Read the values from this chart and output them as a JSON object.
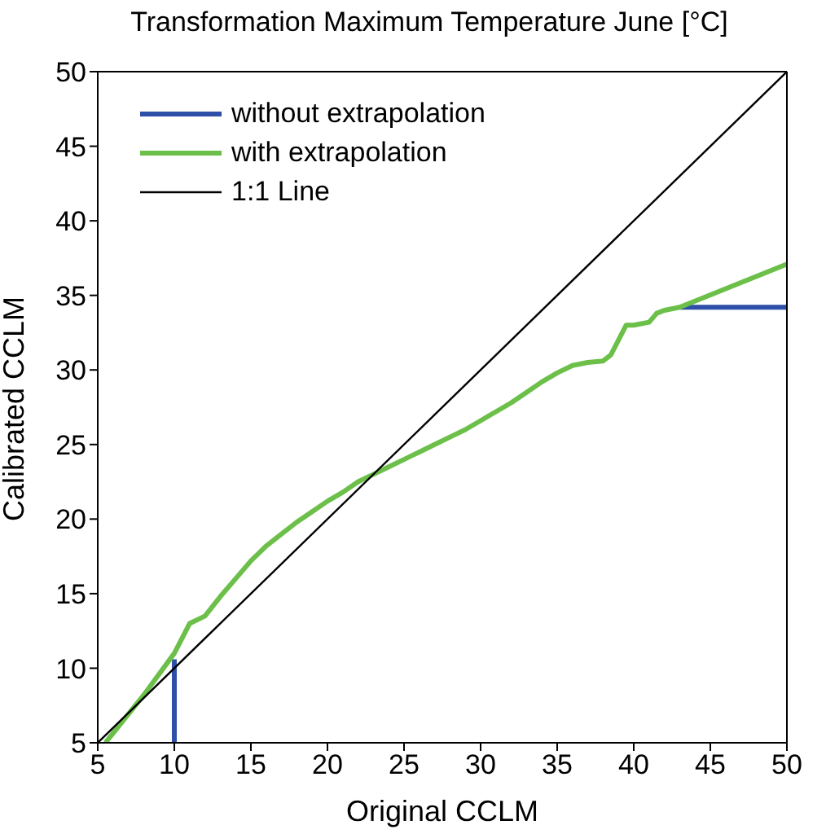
{
  "chart_data": {
    "type": "line",
    "title": "Transformation Maximum Temperature June [°C]",
    "xlabel": "Original CCLM",
    "ylabel": "Calibrated CCLM",
    "xlim": [
      5,
      50
    ],
    "ylim": [
      5,
      50
    ],
    "xticks": [
      5,
      10,
      15,
      20,
      25,
      30,
      35,
      40,
      45,
      50
    ],
    "yticks": [
      5,
      10,
      15,
      20,
      25,
      30,
      35,
      40,
      45,
      50
    ],
    "grid": false,
    "legend": "top left",
    "marker": "none",
    "series": [
      {
        "name": "without extrapolation",
        "color": "#2e4fa8",
        "x": [
          10,
          10,
          20,
          43,
          50
        ],
        "values": [
          5,
          10.6,
          null,
          34.2,
          34.2
        ]
      },
      {
        "name": "with extrapolation",
        "color": "#6cc04a",
        "x": [
          5.5,
          8,
          10,
          10.5,
          11,
          12,
          13,
          14,
          15,
          16,
          17,
          18,
          19,
          20,
          21,
          22,
          23,
          24,
          25,
          26,
          27,
          28,
          29,
          30,
          31,
          32,
          33,
          34,
          35,
          36,
          37,
          38,
          38.5,
          39,
          39.5,
          40,
          41,
          41.5,
          42,
          43,
          50
        ],
        "values": [
          5,
          8.2,
          11,
          12,
          13,
          13.5,
          14.8,
          16,
          17.2,
          18.2,
          19,
          19.8,
          20.5,
          21.2,
          21.8,
          22.5,
          23,
          23.5,
          24,
          24.5,
          25,
          25.5,
          26,
          26.6,
          27.2,
          27.8,
          28.5,
          29.2,
          29.8,
          30.3,
          30.5,
          30.6,
          31,
          32,
          33,
          33,
          33.2,
          33.8,
          34,
          34.2,
          37.1
        ]
      },
      {
        "name": "1:1 Line",
        "color": "#000000",
        "x": [
          5,
          50
        ],
        "values": [
          5,
          50
        ]
      }
    ]
  }
}
